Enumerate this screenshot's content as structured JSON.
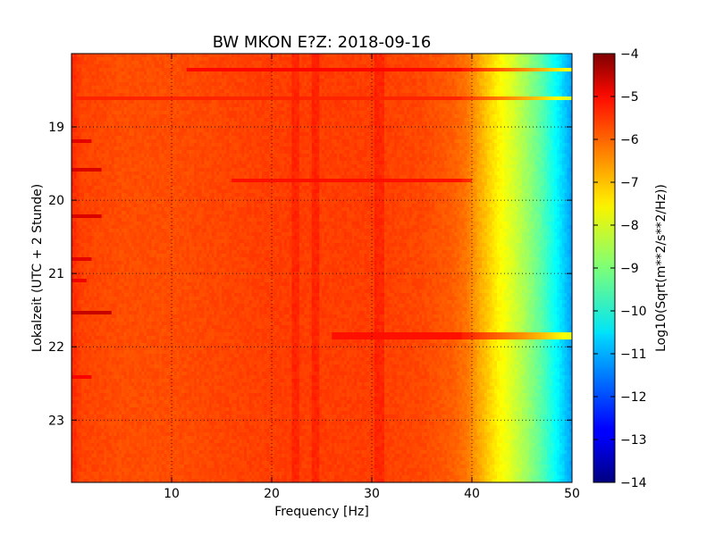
{
  "chart_data": {
    "type": "heatmap",
    "title": "BW MKON E?Z: 2018-09-16",
    "xlabel": "Frequency [Hz]",
    "ylabel": "Lokalzeit (UTC + 2 Stunde)",
    "colorbar_label": "Log10(Sqrt(m**2/s**2/Hz))",
    "xlim": [
      0,
      50
    ],
    "ylim": [
      18.0,
      23.85
    ],
    "y_inverted": true,
    "clim": [
      -14,
      -4
    ],
    "colormap": "jet",
    "grid": true,
    "x_ticks": [
      10,
      20,
      30,
      40,
      50
    ],
    "x_tick_labels": [
      "10",
      "20",
      "30",
      "40",
      "50"
    ],
    "y_ticks": [
      19,
      20,
      21,
      22,
      23
    ],
    "y_tick_labels": [
      "19",
      "20",
      "21",
      "22",
      "23"
    ],
    "colorbar_ticks": [
      -4,
      -5,
      -6,
      -7,
      -8,
      -9,
      -10,
      -11,
      -12,
      -13,
      -14
    ],
    "colorbar_tick_labels": [
      "−4",
      "−5",
      "−6",
      "−7",
      "−8",
      "−9",
      "−10",
      "−11",
      "−12",
      "−13",
      "−14"
    ],
    "spectrum_profile": {
      "frequency_hz": [
        0,
        1,
        5,
        10,
        20,
        30,
        35,
        38,
        39.5,
        41,
        42.5,
        44,
        45.5,
        47,
        48.5,
        50
      ],
      "log10_psd": [
        -5.6,
        -5.9,
        -6.0,
        -6.0,
        -5.85,
        -5.85,
        -5.95,
        -6.15,
        -6.4,
        -7.0,
        -7.6,
        -8.1,
        -8.7,
        -9.4,
        -10.3,
        -11.2
      ]
    },
    "noise_lines_hz": [
      22.3,
      24.3,
      30.5,
      31.0
    ],
    "noise_bursts": [
      {
        "time_h": 18.2,
        "freq_range_hz": [
          11.5,
          50
        ],
        "log10_psd": -5.3
      },
      {
        "time_h": 18.6,
        "freq_range_hz": [
          0,
          50
        ],
        "log10_psd": -5.6
      },
      {
        "time_h": 19.2,
        "freq_range_hz": [
          0,
          2
        ],
        "log10_psd": -5.0
      },
      {
        "time_h": 19.6,
        "freq_range_hz": [
          0,
          3
        ],
        "log10_psd": -4.9
      },
      {
        "time_h": 19.75,
        "freq_range_hz": [
          16,
          40
        ],
        "log10_psd": -5.4
      },
      {
        "time_h": 20.2,
        "freq_range_hz": [
          0,
          3
        ],
        "log10_psd": -4.9
      },
      {
        "time_h": 20.8,
        "freq_range_hz": [
          0,
          2
        ],
        "log10_psd": -5.0
      },
      {
        "time_h": 21.1,
        "freq_range_hz": [
          0,
          1.5
        ],
        "log10_psd": -5.1
      },
      {
        "time_h": 21.55,
        "freq_range_hz": [
          0,
          4
        ],
        "log10_psd": -4.7
      },
      {
        "time_h": 21.85,
        "freq_range_hz": [
          26,
          50
        ],
        "log10_psd": -5.4
      },
      {
        "time_h": 22.4,
        "freq_range_hz": [
          0,
          2
        ],
        "log10_psd": -5.2
      }
    ]
  }
}
